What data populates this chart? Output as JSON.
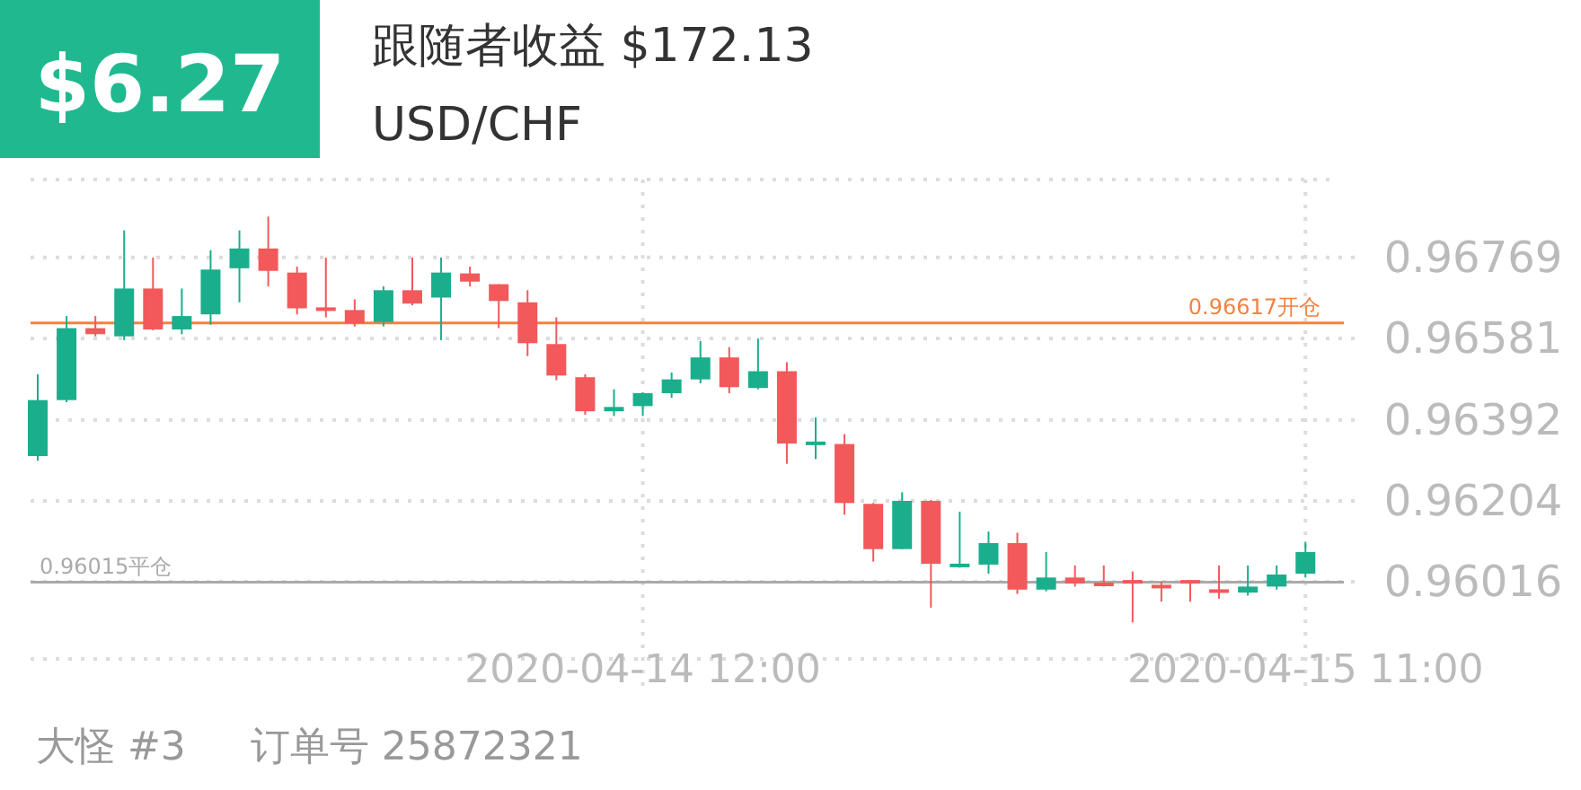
{
  "chart_data": {
    "type": "candlestick",
    "title": "跟随者收益 $172.13",
    "subtitle": "USD/CHF",
    "annotations": [
      "$6.27",
      "大怪 #3",
      "订单号 25872321"
    ],
    "x": [
      "2020-04-13T15:00",
      "2020-04-13T16:00",
      "2020-04-13T17:00",
      "2020-04-13T18:00",
      "2020-04-13T19:00",
      "2020-04-13T20:00",
      "2020-04-13T21:00",
      "2020-04-13T22:00",
      "2020-04-13T23:00",
      "2020-04-14T00:00",
      "2020-04-14T01:00",
      "2020-04-14T02:00",
      "2020-04-14T03:00",
      "2020-04-14T04:00",
      "2020-04-14T05:00",
      "2020-04-14T06:00",
      "2020-04-14T07:00",
      "2020-04-14T08:00",
      "2020-04-14T09:00",
      "2020-04-14T10:00",
      "2020-04-14T11:00",
      "2020-04-14T12:00",
      "2020-04-14T13:00",
      "2020-04-14T14:00",
      "2020-04-14T15:00",
      "2020-04-14T16:00",
      "2020-04-14T17:00",
      "2020-04-14T18:00",
      "2020-04-14T19:00",
      "2020-04-14T20:00",
      "2020-04-14T21:00",
      "2020-04-14T22:00",
      "2020-04-14T23:00",
      "2020-04-15T00:00",
      "2020-04-15T01:00",
      "2020-04-15T02:00",
      "2020-04-15T03:00",
      "2020-04-15T04:00",
      "2020-04-15T05:00",
      "2020-04-15T06:00",
      "2020-04-15T07:00",
      "2020-04-15T08:00",
      "2020-04-15T09:00",
      "2020-04-15T10:00",
      "2020-04-15T11:00"
    ],
    "ohlc": [
      [
        0.96308,
        0.96498,
        0.96297,
        0.96438
      ],
      [
        0.96438,
        0.96633,
        0.96433,
        0.96605
      ],
      [
        0.96605,
        0.96633,
        0.96586,
        0.96591
      ],
      [
        0.96586,
        0.96832,
        0.96577,
        0.96697
      ],
      [
        0.96697,
        0.96769,
        0.966,
        0.96602
      ],
      [
        0.96602,
        0.96697,
        0.96591,
        0.96633
      ],
      [
        0.96637,
        0.96786,
        0.96613,
        0.96741
      ],
      [
        0.96744,
        0.96832,
        0.96665,
        0.9679
      ],
      [
        0.9679,
        0.96864,
        0.96702,
        0.96738
      ],
      [
        0.96734,
        0.96748,
        0.96637,
        0.96651
      ],
      [
        0.96651,
        0.96769,
        0.9663,
        0.96647
      ],
      [
        0.96647,
        0.96672,
        0.96609,
        0.96616
      ],
      [
        0.96619,
        0.96702,
        0.96609,
        0.96693
      ],
      [
        0.96693,
        0.96769,
        0.96658,
        0.96662
      ],
      [
        0.96676,
        0.96769,
        0.96577,
        0.96734
      ],
      [
        0.96732,
        0.96748,
        0.96702,
        0.96713
      ],
      [
        0.96707,
        0.96707,
        0.96605,
        0.96668
      ],
      [
        0.96665,
        0.96693,
        0.9654,
        0.9657
      ],
      [
        0.96568,
        0.9663,
        0.96484,
        0.96495
      ],
      [
        0.96491,
        0.96498,
        0.96404,
        0.96412
      ],
      [
        0.96412,
        0.96463,
        0.96401,
        0.96422
      ],
      [
        0.96424,
        0.96456,
        0.96401,
        0.96454
      ],
      [
        0.96454,
        0.96502,
        0.96443,
        0.96486
      ],
      [
        0.96486,
        0.96575,
        0.96477,
        0.96537
      ],
      [
        0.96537,
        0.96561,
        0.96454,
        0.96468
      ],
      [
        0.96466,
        0.96581,
        0.96463,
        0.96505
      ],
      [
        0.96505,
        0.96526,
        0.9629,
        0.96337
      ],
      [
        0.96337,
        0.96398,
        0.96301,
        0.96338
      ],
      [
        0.96336,
        0.96359,
        0.96172,
        0.96199
      ],
      [
        0.96197,
        0.96199,
        0.96063,
        0.96092
      ],
      [
        0.96092,
        0.96224,
        0.96092,
        0.96204
      ],
      [
        0.96204,
        0.96206,
        0.95956,
        0.96058
      ],
      [
        0.96052,
        0.96179,
        0.96049,
        0.96056
      ],
      [
        0.96056,
        0.96133,
        0.96035,
        0.96106
      ],
      [
        0.96106,
        0.9613,
        0.95988,
        0.95998
      ],
      [
        0.95998,
        0.96085,
        0.95994,
        0.96026
      ],
      [
        0.96026,
        0.96054,
        0.96005,
        0.96012
      ],
      [
        0.96012,
        0.96054,
        0.96005,
        0.96008
      ],
      [
        0.96016,
        0.9604,
        0.95922,
        0.96016
      ],
      [
        0.96005,
        0.96016,
        0.9597,
        0.96005
      ],
      [
        0.96016,
        0.96016,
        0.9597,
        0.96016
      ],
      [
        0.95998,
        0.96054,
        0.95977,
        0.95991
      ],
      [
        0.95991,
        0.96054,
        0.95984,
        0.96005
      ],
      [
        0.96005,
        0.96054,
        0.95998,
        0.96033
      ],
      [
        0.96035,
        0.96109,
        0.96026,
        0.96085
      ]
    ],
    "colors": [
      "#1aae8c",
      "#1aae8c",
      "#f2595b",
      "#1aae8c",
      "#f2595b",
      "#1aae8c",
      "#1aae8c",
      "#1aae8c",
      "#f2595b",
      "#f2595b",
      "#f2595b",
      "#f2595b",
      "#1aae8c",
      "#f2595b",
      "#1aae8c",
      "#f2595b",
      "#f2595b",
      "#f2595b",
      "#f2595b",
      "#f2595b",
      "#1aae8c",
      "#1aae8c",
      "#1aae8c",
      "#1aae8c",
      "#f2595b",
      "#1aae8c",
      "#f2595b",
      "#1aae8c",
      "#f2595b",
      "#f2595b",
      "#1aae8c",
      "#f2595b",
      "#1aae8c",
      "#1aae8c",
      "#f2595b",
      "#1aae8c",
      "#f2595b",
      "#f2595b",
      "#f2595b",
      "#f2595b",
      "#f2595b",
      "#f2595b",
      "#1aae8c",
      "#1aae8c",
      "#1aae8c"
    ],
    "xlim": [
      "2020-04-13T14:45",
      "2020-04-15T11:50"
    ],
    "xticks": [
      {
        "value": "2020-04-14T12:00",
        "label": "2020-04-14 12:00"
      },
      {
        "value": "2020-04-15T11:00",
        "label": "2020-04-15 11:00"
      }
    ],
    "ylim": [
      0.95837,
      0.9695
    ],
    "yticks": [
      0.96016,
      0.96204,
      0.96392,
      0.96581,
      0.96769
    ],
    "ref_lines": [
      {
        "axis": "y",
        "value": 0.96617,
        "label": "0.96617开仓",
        "color": "#f5813f"
      },
      {
        "axis": "y",
        "value": 0.96015,
        "label": "0.96015平仓",
        "color": "#aaaaaa"
      }
    ],
    "grid": true
  }
}
